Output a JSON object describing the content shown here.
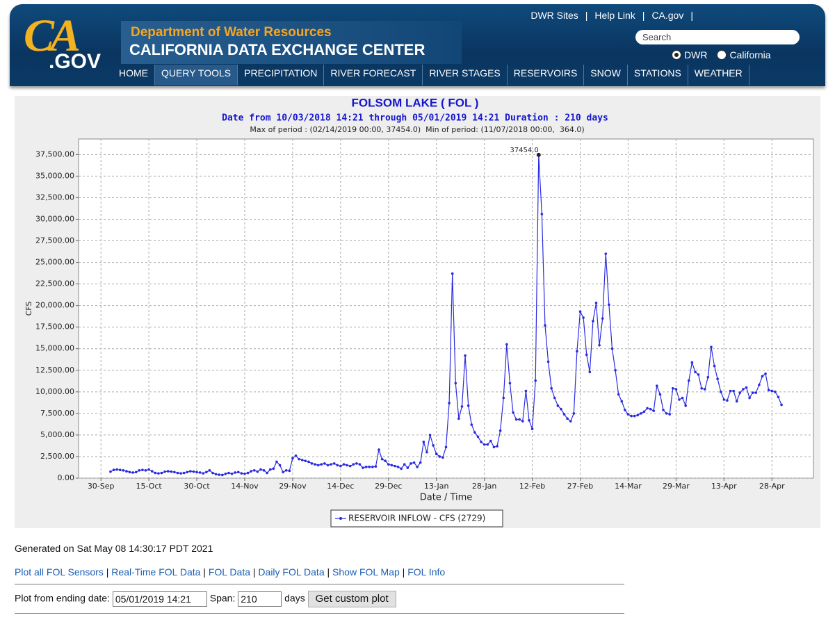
{
  "header": {
    "logo": {
      "top": "CA",
      "bottom": ".GOV"
    },
    "department": "Department of Water Resources",
    "center": "CALIFORNIA DATA EXCHANGE CENTER",
    "top_links": [
      "DWR Sites",
      "Help Link",
      "CA.gov"
    ],
    "search": "Search",
    "radios": [
      "DWR",
      "California"
    ],
    "nav": [
      "HOME",
      "QUERY TOOLS",
      "PRECIPITATION",
      "RIVER FORECAST",
      "RIVER STAGES",
      "RESERVOIRS",
      "SNOW",
      "STATIONS",
      "WEATHER"
    ]
  },
  "chart_data": {
    "type": "line",
    "title": "FOLSOM LAKE ( FOL )",
    "subtitle": "Date from 10/03/2018 14:21 through 05/01/2019 14:21 Duration : 210 days",
    "period": "Max of period : (02/14/2019 00:00, 37454.0)  Min of period: (11/07/2018 00:00,  364.0)",
    "x_label": "Date / Time",
    "y_label": "CFS",
    "grid": true,
    "xlim": [
      "2018-09-23",
      "2019-05-11"
    ],
    "xticks": [
      {
        "value": "2018-09-30",
        "label": "30-Sep"
      },
      {
        "value": "2018-10-15",
        "label": "15-Oct"
      },
      {
        "value": "2018-10-30",
        "label": "30-Oct"
      },
      {
        "value": "2018-11-14",
        "label": "14-Nov"
      },
      {
        "value": "2018-11-29",
        "label": "29-Nov"
      },
      {
        "value": "2018-12-14",
        "label": "14-Dec"
      },
      {
        "value": "2018-12-29",
        "label": "29-Dec"
      },
      {
        "value": "2019-01-13",
        "label": "13-Jan"
      },
      {
        "value": "2019-01-28",
        "label": "28-Jan"
      },
      {
        "value": "2019-02-12",
        "label": "12-Feb"
      },
      {
        "value": "2019-02-27",
        "label": "27-Feb"
      },
      {
        "value": "2019-03-14",
        "label": "14-Mar"
      },
      {
        "value": "2019-03-29",
        "label": "29-Mar"
      },
      {
        "value": "2019-04-13",
        "label": "13-Apr"
      },
      {
        "value": "2019-04-28",
        "label": "28-Apr"
      }
    ],
    "ylim": [
      0,
      39300
    ],
    "yticks": [
      {
        "value": 0,
        "label": "0.00"
      },
      {
        "value": 2500,
        "label": "2,500.00"
      },
      {
        "value": 5000,
        "label": "5,000.00"
      },
      {
        "value": 7500,
        "label": "7,500.00"
      },
      {
        "value": 10000,
        "label": "10,000.00"
      },
      {
        "value": 12500,
        "label": "12,500.00"
      },
      {
        "value": 15000,
        "label": "15,000.00"
      },
      {
        "value": 17500,
        "label": "17,500.00"
      },
      {
        "value": 20000,
        "label": "20,000.00"
      },
      {
        "value": 22500,
        "label": "22,500.00"
      },
      {
        "value": 25000,
        "label": "25,000.00"
      },
      {
        "value": 27500,
        "label": "27,500.00"
      },
      {
        "value": 30000,
        "label": "30,000.00"
      },
      {
        "value": 32500,
        "label": "32,500.00"
      },
      {
        "value": 35000,
        "label": "35,000.00"
      },
      {
        "value": 37500,
        "label": "37,500.00"
      }
    ],
    "x": [
      "2018-10-03",
      "2018-10-04",
      "2018-10-05",
      "2018-10-06",
      "2018-10-07",
      "2018-10-08",
      "2018-10-09",
      "2018-10-10",
      "2018-10-11",
      "2018-10-12",
      "2018-10-13",
      "2018-10-14",
      "2018-10-15",
      "2018-10-16",
      "2018-10-17",
      "2018-10-18",
      "2018-10-19",
      "2018-10-20",
      "2018-10-21",
      "2018-10-22",
      "2018-10-23",
      "2018-10-24",
      "2018-10-25",
      "2018-10-26",
      "2018-10-27",
      "2018-10-28",
      "2018-10-29",
      "2018-10-30",
      "2018-10-31",
      "2018-11-01",
      "2018-11-02",
      "2018-11-03",
      "2018-11-04",
      "2018-11-05",
      "2018-11-06",
      "2018-11-07",
      "2018-11-08",
      "2018-11-09",
      "2018-11-10",
      "2018-11-11",
      "2018-11-12",
      "2018-11-13",
      "2018-11-14",
      "2018-11-15",
      "2018-11-16",
      "2018-11-17",
      "2018-11-18",
      "2018-11-19",
      "2018-11-20",
      "2018-11-21",
      "2018-11-22",
      "2018-11-23",
      "2018-11-24",
      "2018-11-25",
      "2018-11-26",
      "2018-11-27",
      "2018-11-28",
      "2018-11-29",
      "2018-11-30",
      "2018-12-01",
      "2018-12-02",
      "2018-12-03",
      "2018-12-04",
      "2018-12-05",
      "2018-12-06",
      "2018-12-07",
      "2018-12-08",
      "2018-12-09",
      "2018-12-10",
      "2018-12-11",
      "2018-12-12",
      "2018-12-13",
      "2018-12-14",
      "2018-12-15",
      "2018-12-16",
      "2018-12-17",
      "2018-12-18",
      "2018-12-19",
      "2018-12-20",
      "2018-12-21",
      "2018-12-22",
      "2018-12-23",
      "2018-12-24",
      "2018-12-25",
      "2018-12-26",
      "2018-12-27",
      "2018-12-28",
      "2018-12-29",
      "2018-12-30",
      "2018-12-31",
      "2019-01-01",
      "2019-01-02",
      "2019-01-03",
      "2019-01-04",
      "2019-01-05",
      "2019-01-06",
      "2019-01-07",
      "2019-01-08",
      "2019-01-09",
      "2019-01-10",
      "2019-01-11",
      "2019-01-12",
      "2019-01-13",
      "2019-01-14",
      "2019-01-15",
      "2019-01-16",
      "2019-01-17",
      "2019-01-18",
      "2019-01-19",
      "2019-01-20",
      "2019-01-21",
      "2019-01-22",
      "2019-01-23",
      "2019-01-24",
      "2019-01-25",
      "2019-01-26",
      "2019-01-27",
      "2019-01-28",
      "2019-01-29",
      "2019-01-30",
      "2019-01-31",
      "2019-02-01",
      "2019-02-02",
      "2019-02-03",
      "2019-02-04",
      "2019-02-05",
      "2019-02-06",
      "2019-02-07",
      "2019-02-08",
      "2019-02-09",
      "2019-02-10",
      "2019-02-11",
      "2019-02-12",
      "2019-02-13",
      "2019-02-14",
      "2019-02-15",
      "2019-02-16",
      "2019-02-17",
      "2019-02-18",
      "2019-02-19",
      "2019-02-20",
      "2019-02-21",
      "2019-02-22",
      "2019-02-23",
      "2019-02-24",
      "2019-02-25",
      "2019-02-26",
      "2019-02-27",
      "2019-02-28",
      "2019-03-01",
      "2019-03-02",
      "2019-03-03",
      "2019-03-04",
      "2019-03-05",
      "2019-03-06",
      "2019-03-07",
      "2019-03-08",
      "2019-03-09",
      "2019-03-10",
      "2019-03-11",
      "2019-03-12",
      "2019-03-13",
      "2019-03-14",
      "2019-03-15",
      "2019-03-16",
      "2019-03-17",
      "2019-03-18",
      "2019-03-19",
      "2019-03-20",
      "2019-03-21",
      "2019-03-22",
      "2019-03-23",
      "2019-03-24",
      "2019-03-25",
      "2019-03-26",
      "2019-03-27",
      "2019-03-28",
      "2019-03-29",
      "2019-03-30",
      "2019-03-31",
      "2019-04-01",
      "2019-04-02",
      "2019-04-03",
      "2019-04-04",
      "2019-04-05",
      "2019-04-06",
      "2019-04-07",
      "2019-04-08",
      "2019-04-09",
      "2019-04-10",
      "2019-04-11",
      "2019-04-12",
      "2019-04-13",
      "2019-04-14",
      "2019-04-15",
      "2019-04-16",
      "2019-04-17",
      "2019-04-18",
      "2019-04-19",
      "2019-04-20",
      "2019-04-21",
      "2019-04-22",
      "2019-04-23",
      "2019-04-24",
      "2019-04-25",
      "2019-04-26",
      "2019-04-27",
      "2019-04-28",
      "2019-04-29",
      "2019-04-30",
      "2019-05-01"
    ],
    "series": [
      {
        "name": "RESERVOIR INFLOW - CFS (2729)",
        "color": "#2a2ae0",
        "values": [
          750,
          950,
          1000,
          950,
          900,
          800,
          700,
          650,
          700,
          900,
          950,
          900,
          1000,
          800,
          600,
          550,
          600,
          750,
          800,
          750,
          700,
          600,
          550,
          600,
          700,
          800,
          750,
          700,
          650,
          550,
          700,
          900,
          600,
          450,
          400,
          364,
          500,
          600,
          500,
          650,
          700,
          550,
          500,
          600,
          800,
          900,
          750,
          1000,
          900,
          600,
          1000,
          1100,
          1900,
          1500,
          700,
          900,
          850,
          2300,
          2600,
          2200,
          2100,
          2000,
          1900,
          1700,
          1600,
          1500,
          1600,
          1700,
          1500,
          1600,
          1700,
          1500,
          1400,
          1600,
          1500,
          1400,
          1600,
          1700,
          1600,
          1200,
          1300,
          1300,
          1300,
          1350,
          3300,
          2200,
          2000,
          1600,
          1500,
          1400,
          1300,
          1100,
          1600,
          1200,
          1700,
          1800,
          1300,
          1800,
          4200,
          3000,
          5000,
          3800,
          2800,
          2500,
          2400,
          3600,
          8700,
          23700,
          11000,
          6900,
          8300,
          14200,
          8400,
          6200,
          5300,
          4800,
          4200,
          3900,
          3900,
          4300,
          3600,
          3700,
          5500,
          9300,
          15500,
          11000,
          7600,
          6800,
          6800,
          6600,
          10100,
          6700,
          5700,
          11300,
          37454,
          30600,
          17700,
          13500,
          10400,
          9300,
          8400,
          8000,
          7400,
          6900,
          6600,
          7500,
          14700,
          19300,
          18600,
          14300,
          12300,
          18200,
          20300,
          15400,
          18500,
          26000,
          20100,
          15000,
          12500,
          9700,
          8900,
          7900,
          7400,
          7200,
          7200,
          7300,
          7500,
          7700,
          8100,
          8000,
          7800,
          10700,
          9700,
          7900,
          7500,
          7400,
          10400,
          10300,
          9100,
          9300,
          8400,
          11300,
          13400,
          12300,
          12000,
          10400,
          10300,
          11700,
          15200,
          13000,
          11500,
          10000,
          9100,
          9000,
          10100,
          10100,
          8900,
          9900,
          10300,
          10500,
          9300,
          9900,
          9900,
          10800,
          11800,
          12100,
          10200,
          10100,
          10000,
          9400,
          8500
        ]
      }
    ],
    "annotation": {
      "x": "2019-02-14",
      "y": 37454,
      "label": "37454.0",
      "color": "#222222"
    }
  },
  "footer": {
    "generated": "Generated on Sat May 08 14:30:17 PDT 2021",
    "links": [
      "Plot all FOL Sensors",
      "Real-Time FOL Data",
      "FOL Data",
      "Daily FOL Data",
      "Show FOL Map",
      "FOL Info"
    ],
    "form": {
      "date_label": "Plot from ending date:",
      "date_value": "05/01/2019 14:21",
      "span_label": "Span:",
      "span_value": "210",
      "days": "days",
      "button": "Get custom plot"
    }
  }
}
